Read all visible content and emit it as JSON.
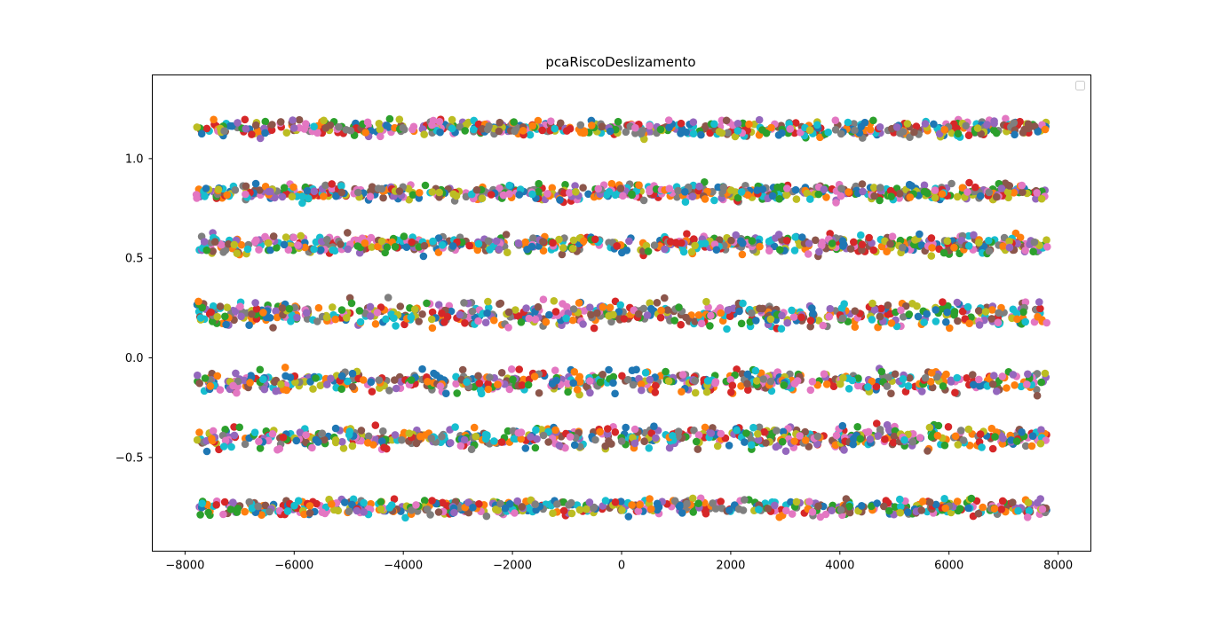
{
  "chart_data": {
    "type": "scatter",
    "title": "pcaRiscoDeslizamento",
    "xlabel": "",
    "ylabel": "",
    "xlim": [
      -8600,
      8600
    ],
    "ylim": [
      -0.97,
      1.42
    ],
    "x_ticks": [
      -8000,
      -6000,
      -4000,
      -2000,
      0,
      2000,
      4000,
      6000,
      8000
    ],
    "x_tick_labels": [
      "−8000",
      "−6000",
      "−4000",
      "−2000",
      "0",
      "2000",
      "4000",
      "6000",
      "8000"
    ],
    "y_ticks": [
      -0.5,
      0.0,
      0.5,
      1.0
    ],
    "y_tick_labels": [
      "−0.5",
      "0.0",
      "0.5",
      "1.0"
    ],
    "grid": false,
    "legend": {
      "position": "top-right",
      "entries": []
    },
    "palette": [
      "#1f77b4",
      "#ff7f0e",
      "#2ca02c",
      "#d62728",
      "#9467bd",
      "#8c564b",
      "#e377c2",
      "#7f7f7f",
      "#bcbd22",
      "#17becf"
    ],
    "x_range_of_points": [
      -7800,
      7800
    ],
    "y_bands": [
      {
        "center": 1.15,
        "spread": 0.06
      },
      {
        "center": 0.83,
        "spread": 0.06
      },
      {
        "center": 0.57,
        "spread": 0.07
      },
      {
        "center": 0.22,
        "spread": 0.09
      },
      {
        "center": -0.12,
        "spread": 0.08
      },
      {
        "center": -0.4,
        "spread": 0.08
      },
      {
        "center": -0.75,
        "spread": 0.06
      }
    ]
  }
}
